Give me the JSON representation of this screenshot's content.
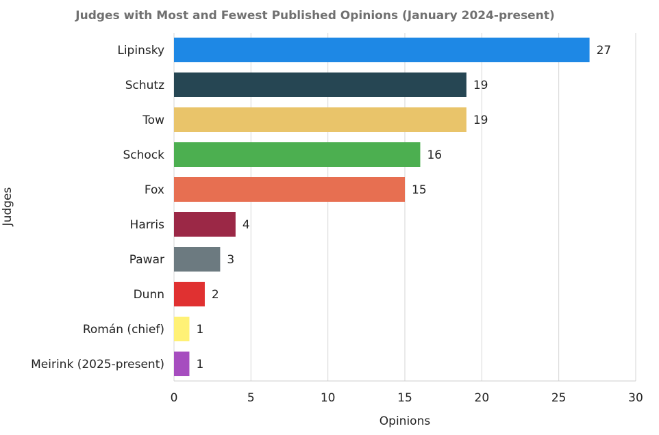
{
  "chart_data": {
    "type": "bar",
    "orientation": "horizontal",
    "title": "Judges with Most and Fewest Published Opinions (January 2024-present)",
    "xlabel": "Opinions",
    "ylabel": "Judges",
    "xlim": [
      0,
      30
    ],
    "xticks": [
      0,
      5,
      10,
      15,
      20,
      25,
      30
    ],
    "grid": true,
    "categories": [
      "Lipinsky",
      "Schutz",
      "Tow",
      "Schock",
      "Fox",
      "Harris",
      "Pawar",
      "Dunn",
      "Román (chief)",
      "Meirink (2025-present)"
    ],
    "values": [
      27,
      19,
      19,
      16,
      15,
      4,
      3,
      2,
      1,
      1
    ],
    "colors": [
      "#1e88e5",
      "#264653",
      "#e9c46a",
      "#4caf50",
      "#e76f51",
      "#9b2846",
      "#6c7a80",
      "#e03131",
      "#fff176",
      "#a64dbf"
    ]
  }
}
